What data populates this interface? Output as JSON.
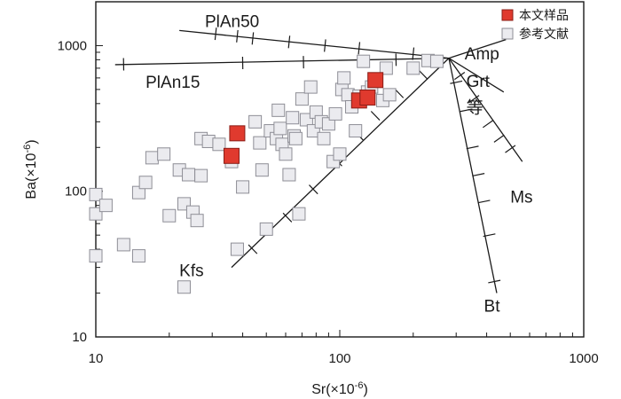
{
  "chart_data": {
    "type": "scatter",
    "xscale": "log",
    "yscale": "log",
    "xlim": [
      10,
      1000
    ],
    "ylim": [
      10,
      2000
    ],
    "xlabel": {
      "base": "Sr(×10",
      "exp": "-6",
      "tail": ")"
    },
    "ylabel": {
      "base": "Ba(×10",
      "exp": "-6",
      "tail": ")"
    },
    "x_ticks": [
      {
        "value": 10,
        "label": "10"
      },
      {
        "value": 100,
        "label": "100"
      },
      {
        "value": 1000,
        "label": "1000"
      }
    ],
    "y_ticks": [
      {
        "value": 10,
        "label": "10"
      },
      {
        "value": 100,
        "label": "100"
      },
      {
        "value": 1000,
        "label": "1000"
      }
    ],
    "legend_position": "top-right",
    "colors": {
      "sample_fill": "#e03a2e",
      "sample_edge": "#8a1d16",
      "ref_fill": "#ebebef",
      "ref_edge": "#8e8e96",
      "line": "#1a1a1a"
    },
    "series": [
      {
        "name": "本文样品",
        "marker": "square-filled",
        "points": [
          [
            38,
            250
          ],
          [
            36,
            175
          ],
          [
            120,
            420
          ],
          [
            130,
            440
          ],
          [
            140,
            580
          ]
        ]
      },
      {
        "name": "参考文献",
        "marker": "square-open",
        "points": [
          [
            10,
            95
          ],
          [
            10,
            70
          ],
          [
            11,
            80
          ],
          [
            10,
            36
          ],
          [
            13,
            43
          ],
          [
            15,
            36
          ],
          [
            15,
            98
          ],
          [
            16,
            115
          ],
          [
            17,
            170
          ],
          [
            19,
            180
          ],
          [
            20,
            68
          ],
          [
            22,
            140
          ],
          [
            23,
            82
          ],
          [
            23,
            22
          ],
          [
            24,
            130
          ],
          [
            25,
            72
          ],
          [
            26,
            63
          ],
          [
            27,
            128
          ],
          [
            27,
            230
          ],
          [
            29,
            220
          ],
          [
            32,
            210
          ],
          [
            36,
            160
          ],
          [
            38,
            40
          ],
          [
            40,
            107
          ],
          [
            45,
            300
          ],
          [
            47,
            215
          ],
          [
            48,
            140
          ],
          [
            50,
            55
          ],
          [
            52,
            260
          ],
          [
            55,
            230
          ],
          [
            56,
            360
          ],
          [
            57,
            270
          ],
          [
            58,
            210
          ],
          [
            60,
            180
          ],
          [
            62,
            130
          ],
          [
            64,
            320
          ],
          [
            65,
            240
          ],
          [
            66,
            230
          ],
          [
            68,
            70
          ],
          [
            70,
            430
          ],
          [
            73,
            310
          ],
          [
            76,
            520
          ],
          [
            78,
            260
          ],
          [
            80,
            350
          ],
          [
            84,
            300
          ],
          [
            86,
            230
          ],
          [
            90,
            290
          ],
          [
            94,
            160
          ],
          [
            96,
            340
          ],
          [
            100,
            180
          ],
          [
            102,
            500
          ],
          [
            104,
            600
          ],
          [
            108,
            460
          ],
          [
            112,
            380
          ],
          [
            116,
            260
          ],
          [
            120,
            450
          ],
          [
            125,
            780
          ],
          [
            130,
            480
          ],
          [
            135,
            520
          ],
          [
            150,
            420
          ],
          [
            155,
            700
          ],
          [
            160,
            460
          ],
          [
            200,
            700
          ],
          [
            230,
            790
          ],
          [
            250,
            780
          ]
        ]
      }
    ],
    "vectors": [
      {
        "label": "PlAn50",
        "from": [
          280,
          820
        ],
        "to": [
          22,
          1270
        ],
        "ticks": [
          [
            31,
            1205
          ],
          [
            38,
            1160
          ],
          [
            44,
            1120
          ],
          [
            62,
            1060
          ],
          [
            87,
            1000
          ],
          [
            120,
            960
          ],
          [
            200,
            880
          ]
        ]
      },
      {
        "label": "PlAn15",
        "from": [
          280,
          820
        ],
        "to": [
          12,
          740
        ],
        "ticks": [
          [
            13,
            745
          ],
          [
            40,
            760
          ],
          [
            71,
            770
          ],
          [
            120,
            780
          ],
          [
            170,
            800
          ]
        ]
      },
      {
        "label": "Kfs",
        "from": [
          280,
          820
        ],
        "to": [
          36,
          30
        ],
        "ticks": [
          [
            44,
            40
          ],
          [
            61,
            66
          ],
          [
            78,
            103
          ],
          [
            98,
            160
          ],
          [
            120,
            240
          ],
          [
            140,
            330
          ],
          [
            175,
            470
          ],
          [
            220,
            630
          ]
        ]
      },
      {
        "label": "Amp",
        "from": [
          280,
          820
        ],
        "to": [
          480,
          1100
        ],
        "ticks": []
      },
      {
        "label": "Grt",
        "from": [
          280,
          820
        ],
        "to": [
          470,
          480
        ],
        "ticks": []
      },
      {
        "label": "Ms",
        "from": [
          280,
          820
        ],
        "to": [
          560,
          160
        ],
        "ticks": [
          [
            310,
            620
          ],
          [
            355,
            430
          ],
          [
            405,
            290
          ],
          [
            450,
            230
          ],
          [
            500,
            195
          ]
        ]
      },
      {
        "label": "Bt",
        "from": [
          280,
          820
        ],
        "to": [
          440,
          20
        ],
        "ticks": [
          [
            300,
            560
          ],
          [
            330,
            360
          ],
          [
            350,
            200
          ],
          [
            370,
            130
          ],
          [
            390,
            85
          ],
          [
            410,
            50
          ],
          [
            430,
            24
          ]
        ]
      }
    ],
    "labels": [
      {
        "text": "PlAn50",
        "x": 28,
        "y": 1440
      },
      {
        "text": "PlAn15",
        "x": 16,
        "y": 550
      },
      {
        "text": "Kfs",
        "x": 22,
        "y": 28
      },
      {
        "text": "Amp",
        "x": 325,
        "y": 860
      },
      {
        "text": "Grt",
        "x": 330,
        "y": 560
      },
      {
        "text": "等",
        "x": 330,
        "y": 370
      },
      {
        "text": "Ms",
        "x": 500,
        "y": 90
      },
      {
        "text": "Bt",
        "x": 390,
        "y": 16
      }
    ]
  }
}
